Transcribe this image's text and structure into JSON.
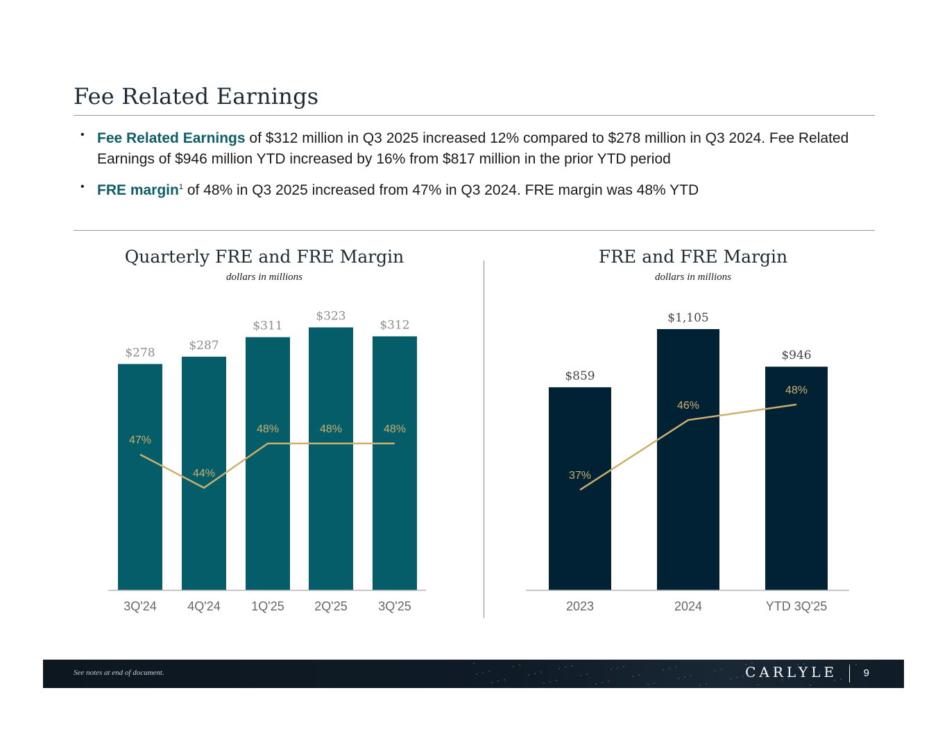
{
  "page": {
    "title": "Fee Related Earnings",
    "bullets": [
      {
        "highlight": "Fee Related Earnings",
        "sup": "",
        "text": " of $312 million in Q3 2025 increased 12% compared to $278 million in Q3 2024. Fee Related Earnings of $946 million YTD increased by 16% from $817 million in the prior YTD period"
      },
      {
        "highlight": "FRE margin",
        "sup": "1",
        "text": " of 48% in Q3 2025 increased from 47% in Q3 2024. FRE margin was 48% YTD"
      }
    ]
  },
  "chart_data": [
    {
      "type": "bar",
      "title": "Quarterly FRE and FRE Margin",
      "subtitle": "dollars in millions",
      "categories": [
        "3Q'24",
        "4Q'24",
        "1Q'25",
        "2Q'25",
        "3Q'25"
      ],
      "series": [
        {
          "kind": "bar",
          "values": [
            278,
            287,
            311,
            323,
            312
          ],
          "labels": [
            "$278",
            "$287",
            "$311",
            "$323",
            "$312"
          ]
        },
        {
          "kind": "line",
          "values": [
            47,
            44,
            48,
            48,
            48
          ],
          "labels": [
            "47%",
            "44%",
            "48%",
            "48%",
            "48%"
          ]
        }
      ],
      "colors": {
        "bar": "#045d69",
        "line": "#cdb06e",
        "bar_label": "#8c8c8c",
        "line_label": "#cdb06e"
      }
    },
    {
      "type": "bar",
      "title": "FRE and FRE Margin",
      "subtitle": "dollars in millions",
      "categories": [
        "2023",
        "2024",
        "YTD 3Q'25"
      ],
      "series": [
        {
          "kind": "bar",
          "values": [
            859,
            1105,
            946
          ],
          "labels": [
            "$859",
            "$1,105",
            "$946"
          ]
        },
        {
          "kind": "line",
          "values": [
            37,
            46,
            48
          ],
          "labels": [
            "37%",
            "46%",
            "48%"
          ]
        }
      ],
      "colors": {
        "bar": "#012235",
        "line": "#cdb06e",
        "bar_label": "#444444",
        "line_label": "#cdb06e"
      }
    }
  ],
  "footer": {
    "note": "See notes at end of document.",
    "logo": "CARLYLE",
    "page_number": "9"
  }
}
